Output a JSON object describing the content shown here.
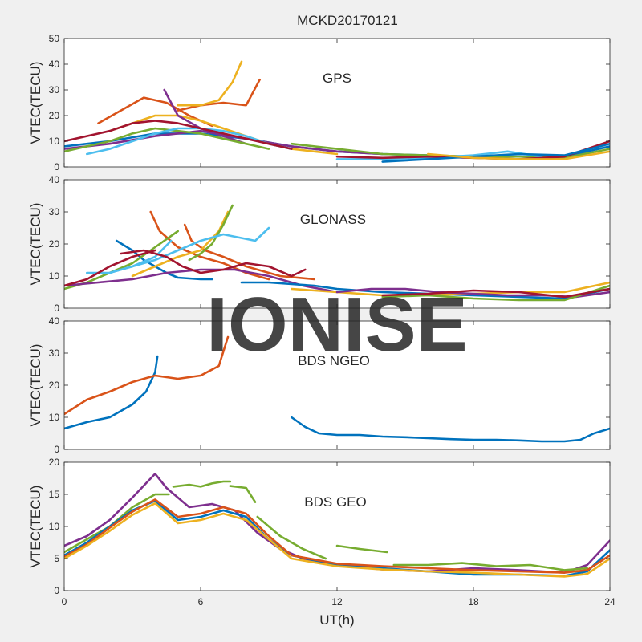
{
  "title": "MCKD20170121",
  "watermark": "IONISE",
  "colors": {
    "background": "#f0f0f0",
    "axes_bg": "#ffffff",
    "axis": "#262626",
    "watermark": "#e1e1e1",
    "series": [
      "#0072bd",
      "#d95319",
      "#edb120",
      "#7e2f8e",
      "#77ac30",
      "#4dbeee",
      "#a2142f"
    ]
  },
  "chart_data": [
    {
      "type": "line",
      "label": "GPS",
      "ylabel": "VTEC(TECU)",
      "xlim": [
        0,
        24
      ],
      "ylim": [
        0,
        50
      ],
      "yticks": [
        0,
        10,
        20,
        30,
        40,
        50
      ],
      "grid": false,
      "series": [
        {
          "color": 0,
          "x": [
            0,
            2,
            4,
            6,
            8,
            10,
            12,
            14,
            16,
            18,
            20,
            22,
            24
          ],
          "y": [
            8,
            10,
            13,
            13,
            11,
            8,
            6,
            5,
            4.5,
            4,
            4,
            4,
            8
          ]
        },
        {
          "color": 1,
          "x": [
            1.5,
            2.5,
            3.5,
            4.5,
            5.5,
            6.5
          ],
          "y": [
            17,
            22,
            27,
            25,
            20,
            16
          ]
        },
        {
          "color": 1,
          "x": [
            5,
            6,
            7,
            8,
            8.6
          ],
          "y": [
            22,
            24,
            25,
            24,
            34
          ]
        },
        {
          "color": 2,
          "x": [
            5,
            6,
            6.8,
            7.4,
            7.8
          ],
          "y": [
            24,
            24,
            26,
            33,
            41
          ]
        },
        {
          "color": 2,
          "x": [
            2,
            3,
            4,
            5,
            6,
            7,
            8,
            9,
            10,
            11,
            12
          ],
          "y": [
            14,
            17,
            20,
            20,
            18,
            15,
            12,
            9,
            7,
            6,
            5
          ]
        },
        {
          "color": 3,
          "x": [
            4.4,
            5,
            6,
            7,
            8
          ],
          "y": [
            30,
            20,
            15,
            12,
            9
          ]
        },
        {
          "color": 3,
          "x": [
            0,
            2,
            4,
            6,
            8,
            10,
            12,
            14
          ],
          "y": [
            7,
            9,
            12,
            14,
            11,
            8,
            6,
            5
          ]
        },
        {
          "color": 4,
          "x": [
            0,
            1,
            2,
            3,
            4,
            5,
            6,
            7,
            8,
            9
          ],
          "y": [
            6,
            8,
            10,
            13,
            15,
            14,
            13,
            11,
            9,
            7
          ]
        },
        {
          "color": 4,
          "x": [
            10,
            12,
            14,
            16,
            18,
            20,
            22,
            24
          ],
          "y": [
            9,
            7,
            5,
            4.5,
            4,
            4,
            3.5,
            7
          ]
        },
        {
          "color": 5,
          "x": [
            1,
            2,
            3,
            4,
            5,
            6,
            7,
            8,
            9,
            10
          ],
          "y": [
            5,
            7,
            10,
            13,
            15,
            15,
            14,
            12,
            9,
            7
          ]
        },
        {
          "color": 5,
          "x": [
            12,
            14,
            16,
            18,
            19.5,
            21
          ],
          "y": [
            3,
            3,
            3.5,
            4.5,
            6,
            4
          ]
        },
        {
          "color": 6,
          "x": [
            0,
            2,
            3,
            4,
            5,
            6,
            7,
            8,
            9,
            10
          ],
          "y": [
            10,
            14,
            17,
            18,
            17,
            15,
            13,
            11,
            9,
            7
          ]
        },
        {
          "color": 6,
          "x": [
            12,
            14,
            16,
            18,
            20,
            22,
            24
          ],
          "y": [
            4,
            3.5,
            4,
            3.5,
            3,
            4,
            10
          ]
        },
        {
          "color": 0,
          "x": [
            14,
            16,
            18,
            20,
            22,
            24
          ],
          "y": [
            2,
            3,
            4,
            5,
            4.5,
            9
          ]
        },
        {
          "color": 2,
          "x": [
            16,
            18,
            20,
            22,
            24
          ],
          "y": [
            5,
            3.5,
            3,
            3,
            6
          ]
        }
      ]
    },
    {
      "type": "line",
      "label": "GLONASS",
      "ylabel": "VTEC(TECU)",
      "xlim": [
        0,
        24
      ],
      "ylim": [
        0,
        40
      ],
      "yticks": [
        0,
        10,
        20,
        30,
        40
      ],
      "grid": false,
      "series": [
        {
          "color": 0,
          "x": [
            2.3,
            3,
            3.5,
            4,
            4.5,
            5,
            6,
            6.5
          ],
          "y": [
            21,
            18,
            15,
            13,
            11,
            9.5,
            9,
            9
          ]
        },
        {
          "color": 1,
          "x": [
            3.8,
            4.2,
            5,
            6,
            7,
            8,
            9
          ],
          "y": [
            30,
            24,
            19,
            16,
            14,
            11,
            9
          ]
        },
        {
          "color": 1,
          "x": [
            5.3,
            5.6,
            6.2,
            7,
            8,
            9.5,
            11
          ],
          "y": [
            26,
            21,
            18,
            16,
            13,
            10,
            9
          ]
        },
        {
          "color": 2,
          "x": [
            3,
            4,
            5,
            6,
            6.8,
            7.2
          ],
          "y": [
            10,
            13,
            16,
            18,
            24,
            30
          ]
        },
        {
          "color": 4,
          "x": [
            5.5,
            6,
            6.5,
            7,
            7.4
          ],
          "y": [
            15,
            17,
            20,
            26,
            32
          ]
        },
        {
          "color": 4,
          "x": [
            0,
            1,
            2,
            3,
            4,
            5
          ],
          "y": [
            6,
            8,
            11,
            14,
            19,
            24
          ]
        },
        {
          "color": 5,
          "x": [
            1,
            2,
            3,
            4,
            5,
            6,
            7,
            7.7,
            8.4,
            9
          ],
          "y": [
            11,
            11,
            13,
            15,
            18,
            21,
            23,
            22,
            21,
            25
          ]
        },
        {
          "color": 5,
          "x": [
            2,
            3,
            4,
            4.7
          ],
          "y": [
            11,
            13,
            16,
            21
          ]
        },
        {
          "color": 3,
          "x": [
            0,
            1.5,
            3,
            4.5,
            6,
            7.5,
            9,
            10.5,
            12
          ],
          "y": [
            7,
            8,
            9,
            11,
            12,
            12,
            10,
            7,
            5
          ]
        },
        {
          "color": 6,
          "x": [
            2.5,
            3.5,
            4.5,
            5.2,
            6,
            7,
            8,
            9,
            10,
            10.6
          ],
          "y": [
            17,
            18,
            16,
            13,
            11,
            12,
            14,
            13,
            10,
            12
          ]
        },
        {
          "color": 6,
          "x": [
            0,
            1,
            2,
            3,
            4
          ],
          "y": [
            7,
            9,
            13,
            16,
            18
          ]
        },
        {
          "color": 0,
          "x": [
            7.8,
            9,
            10,
            11,
            12,
            14,
            16,
            18,
            20,
            22,
            24
          ],
          "y": [
            8,
            8,
            7.5,
            7,
            6,
            5,
            4.5,
            4,
            3.5,
            3,
            6
          ]
        },
        {
          "color": 2,
          "x": [
            10,
            12,
            14,
            16,
            18,
            20,
            22,
            24
          ],
          "y": [
            6,
            5,
            4,
            4,
            4.5,
            5,
            5,
            8
          ]
        },
        {
          "color": 3,
          "x": [
            12,
            13.5,
            15,
            16.5,
            18,
            19.5,
            21,
            22.5,
            24
          ],
          "y": [
            5,
            6,
            6,
            5,
            4.5,
            4,
            4,
            3.5,
            5
          ]
        },
        {
          "color": 4,
          "x": [
            14,
            16,
            18,
            20,
            22,
            24
          ],
          "y": [
            3.5,
            4,
            3,
            2.5,
            2.5,
            7
          ]
        },
        {
          "color": 6,
          "x": [
            14,
            16,
            18,
            20,
            22,
            24
          ],
          "y": [
            4,
            4.5,
            5.5,
            5,
            3.5,
            6
          ]
        }
      ]
    },
    {
      "type": "line",
      "label": "BDS NGEO",
      "ylabel": "VTEC(TECU)",
      "xlim": [
        0,
        24
      ],
      "ylim": [
        0,
        40
      ],
      "yticks": [
        0,
        10,
        20,
        30,
        40
      ],
      "grid": false,
      "series": [
        {
          "color": 0,
          "x": [
            0,
            1,
            2,
            3,
            3.6,
            4,
            4.1
          ],
          "y": [
            6.5,
            8.5,
            10,
            14,
            18,
            24,
            29
          ]
        },
        {
          "color": 1,
          "x": [
            0,
            1,
            2,
            3,
            4,
            5,
            6,
            6.8,
            7.2
          ],
          "y": [
            11,
            15.5,
            18,
            21,
            23,
            22,
            23,
            26,
            35
          ]
        },
        {
          "color": 0,
          "x": [
            10,
            10.6,
            11.2,
            12,
            13,
            14,
            15,
            16,
            17,
            18,
            19,
            20,
            21,
            22,
            22.7,
            23.3,
            24
          ],
          "y": [
            10,
            7,
            5,
            4.5,
            4.5,
            4,
            3.8,
            3.5,
            3.2,
            3.0,
            3.0,
            2.8,
            2.5,
            2.5,
            3.0,
            5,
            6.5
          ]
        }
      ]
    },
    {
      "type": "line",
      "label": "BDS GEO",
      "ylabel": "VTEC(TECU)",
      "xlabel": "UT(h)",
      "xlim": [
        0,
        24
      ],
      "ylim": [
        0,
        20
      ],
      "yticks": [
        0,
        5,
        10,
        15,
        20
      ],
      "xticks": [
        0,
        6,
        12,
        18,
        24
      ],
      "grid": false,
      "series": [
        {
          "color": 3,
          "x": [
            0,
            1,
            2,
            3,
            4,
            4.5,
            5.5,
            6.5,
            7.5,
            8.5,
            9.5,
            10.5,
            12,
            14,
            16,
            18,
            20,
            22,
            23,
            24
          ],
          "y": [
            7,
            8.5,
            11,
            14.5,
            18.2,
            16,
            13,
            13.5,
            12.5,
            9,
            6.5,
            5,
            4,
            3.3,
            3,
            3.5,
            3.2,
            2.8,
            4,
            7.8
          ]
        },
        {
          "color": 4,
          "x": [
            0,
            1,
            2,
            3,
            4,
            4.6
          ],
          "y": [
            6,
            8,
            10,
            13,
            15,
            15
          ]
        },
        {
          "color": 4,
          "x": [
            4.8,
            5.5,
            6,
            6.5,
            7,
            7.3
          ],
          "y": [
            16.2,
            16.5,
            16.2,
            16.7,
            17,
            17
          ]
        },
        {
          "color": 4,
          "x": [
            7.3,
            8,
            8.4
          ],
          "y": [
            16.3,
            16,
            13.8
          ]
        },
        {
          "color": 4,
          "x": [
            8.5,
            9.5,
            10.5,
            11.5
          ],
          "y": [
            11.5,
            8.5,
            6.5,
            5
          ]
        },
        {
          "color": 4,
          "x": [
            12,
            13,
            14.2
          ],
          "y": [
            7,
            6.5,
            6
          ]
        },
        {
          "color": 4,
          "x": [
            14.5,
            16,
            17.5,
            19,
            20.5,
            22,
            23
          ],
          "y": [
            4,
            4,
            4.3,
            3.8,
            4,
            3.2,
            3.5
          ]
        },
        {
          "color": 0,
          "x": [
            0,
            1,
            2,
            3,
            4,
            5,
            6,
            7,
            8,
            9,
            10,
            12,
            14,
            16,
            18,
            20,
            22,
            23,
            24
          ],
          "y": [
            5.5,
            7.5,
            10,
            12.5,
            14,
            11,
            11.5,
            12.5,
            11.5,
            8,
            5.5,
            4,
            3.5,
            3,
            2.5,
            2.5,
            2.3,
            3,
            6.3
          ]
        },
        {
          "color": 1,
          "x": [
            0,
            1,
            2,
            3,
            4,
            5,
            6,
            7,
            8,
            9,
            10,
            12,
            14,
            16,
            18,
            20,
            22,
            23,
            24
          ],
          "y": [
            5.3,
            7.2,
            9.8,
            12.3,
            14.2,
            11.5,
            12,
            13,
            12,
            8.5,
            5.5,
            4.2,
            3.8,
            3.5,
            3.2,
            3,
            2.8,
            3.2,
            5.5
          ]
        },
        {
          "color": 2,
          "x": [
            0,
            1,
            2,
            3,
            4,
            5,
            6,
            7,
            8,
            9,
            10,
            12,
            14,
            16,
            18,
            20,
            22,
            23,
            24
          ],
          "y": [
            5,
            7,
            9.3,
            11.8,
            13.6,
            10.5,
            11,
            12,
            11,
            8,
            5,
            3.8,
            3.3,
            3,
            2.8,
            2.5,
            2.2,
            2.6,
            5
          ]
        }
      ]
    }
  ]
}
